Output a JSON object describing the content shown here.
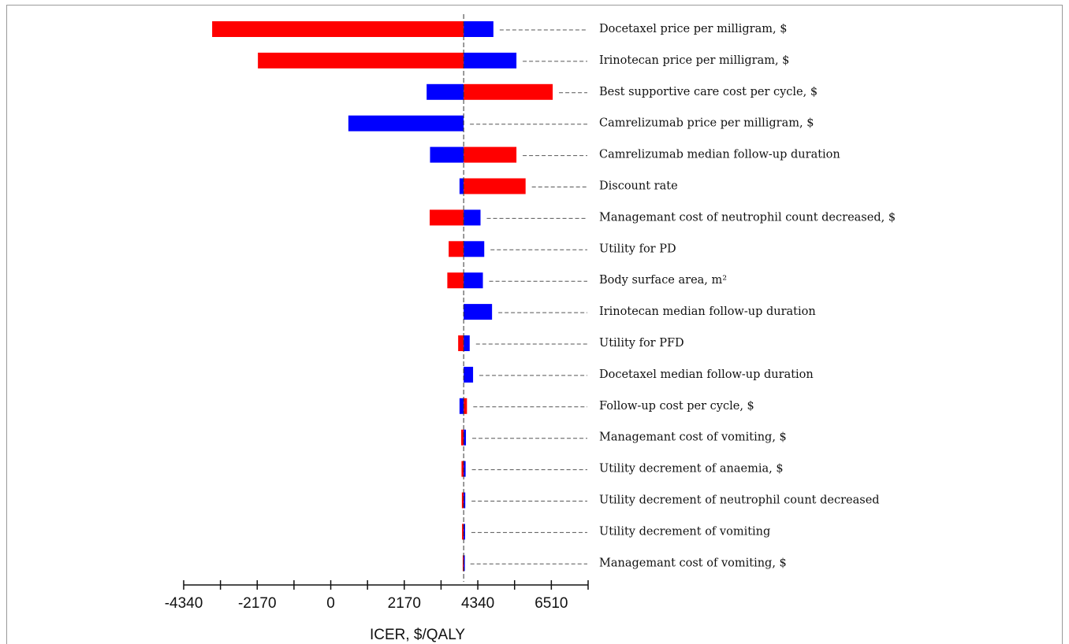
{
  "chart_data": {
    "type": "tornado",
    "title": "",
    "xlabel": "ICER, $/QALY",
    "xlim": [
      -4340,
      7595
    ],
    "baseline": 3922,
    "ticks": [
      -4340,
      -2170,
      0,
      2170,
      4340,
      6510
    ],
    "tick_labels": [
      "-4340",
      "-2170",
      "0",
      "2170",
      "4340",
      "6510"
    ],
    "colors": {
      "red": "#ff0000",
      "blue": "#0000ff"
    },
    "bars": [
      {
        "label": "Docetaxel price per milligram, $",
        "red": [
          -3500,
          3922
        ],
        "blue": [
          3922,
          4800
        ]
      },
      {
        "label": "Irinotecan price per milligram, $",
        "red": [
          -2150,
          3922
        ],
        "blue": [
          3922,
          5480
        ]
      },
      {
        "label": "Best supportive care cost per cycle, $",
        "blue": [
          2830,
          3922
        ],
        "red": [
          3922,
          6550
        ]
      },
      {
        "label": "Camrelizumab price per milligram, $",
        "blue": [
          520,
          3922
        ]
      },
      {
        "label": "Camrelizumab median follow-up duration",
        "blue": [
          2930,
          3922
        ],
        "red": [
          3922,
          5480
        ]
      },
      {
        "label": "Discount rate",
        "blue": [
          3800,
          3922
        ],
        "red": [
          3922,
          5750
        ]
      },
      {
        "label": "Managemant cost of neutrophil count decreased, $",
        "red": [
          2920,
          3922
        ],
        "blue": [
          3922,
          4420
        ]
      },
      {
        "label": "Utility for PD",
        "red": [
          3480,
          3922
        ],
        "blue": [
          3922,
          4530
        ]
      },
      {
        "label": "Body surface area, m²",
        "red": [
          3440,
          3922
        ],
        "blue": [
          3922,
          4490
        ]
      },
      {
        "label": "Irinotecan median follow-up duration",
        "blue": [
          3922,
          4760
        ]
      },
      {
        "label": "Utility for PFD",
        "red": [
          3760,
          3922
        ],
        "blue": [
          3922,
          4100
        ]
      },
      {
        "label": "Docetaxel median follow-up duration",
        "blue": [
          3922,
          4200
        ]
      },
      {
        "label": "Follow-up cost per cycle, $",
        "blue": [
          3800,
          3922
        ],
        "red": [
          3922,
          4020
        ]
      },
      {
        "label": "Managemant cost of vomiting, $",
        "red": [
          3850,
          3922
        ],
        "blue": [
          3922,
          3990
        ]
      },
      {
        "label": "Utility decrement of anaemia, $",
        "red": [
          3860,
          3922
        ],
        "blue": [
          3922,
          3980
        ]
      },
      {
        "label": "Utility decrement of neutrophil count decreased",
        "red": [
          3870,
          3922
        ],
        "blue": [
          3922,
          3970
        ]
      },
      {
        "label": "Utility decrement of vomiting",
        "red": [
          3875,
          3922
        ],
        "blue": [
          3922,
          3965
        ]
      },
      {
        "label": "Managemant cost of vomiting, $",
        "red": [
          3895,
          3922
        ],
        "blue": [
          3922,
          3935
        ]
      }
    ]
  }
}
